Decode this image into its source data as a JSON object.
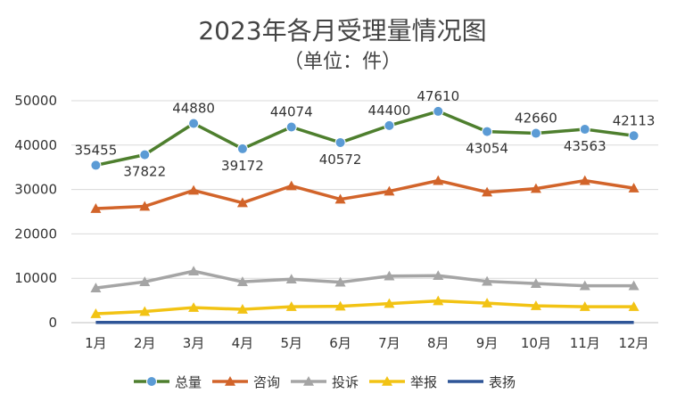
{
  "chart_data": {
    "type": "line",
    "title": "2023年各月受理量情况图",
    "subtitle": "（单位：件）",
    "categories": [
      "1月",
      "2月",
      "3月",
      "4月",
      "5月",
      "6月",
      "7月",
      "8月",
      "9月",
      "10月",
      "11月",
      "12月"
    ],
    "ylim": [
      0,
      50000
    ],
    "yticks": [
      0,
      10000,
      20000,
      30000,
      40000,
      50000
    ],
    "grid": true,
    "legend_position": "bottom",
    "series": [
      {
        "name": "总量",
        "color": "#4e7f2e",
        "marker": "circle",
        "marker_color": "#5b9bd5",
        "show_labels": true,
        "values": [
          35455,
          37822,
          44880,
          39172,
          44074,
          40572,
          44400,
          47610,
          43054,
          42660,
          43563,
          42113
        ]
      },
      {
        "name": "咨询",
        "color": "#d2642a",
        "marker": "triangle",
        "marker_color": "#d2642a",
        "show_labels": false,
        "values": [
          25700,
          26200,
          29800,
          27000,
          30800,
          27800,
          29600,
          32000,
          29400,
          30200,
          32000,
          30300
        ]
      },
      {
        "name": "投诉",
        "color": "#a5a5a5",
        "marker": "triangle",
        "marker_color": "#a5a5a5",
        "show_labels": false,
        "values": [
          7800,
          9200,
          11600,
          9200,
          9800,
          9100,
          10500,
          10600,
          9300,
          8800,
          8300,
          8300
        ]
      },
      {
        "name": "举报",
        "color": "#f2c314",
        "marker": "triangle",
        "marker_color": "#f2c314",
        "show_labels": false,
        "values": [
          2000,
          2500,
          3400,
          3000,
          3600,
          3700,
          4300,
          4900,
          4400,
          3800,
          3600,
          3600
        ]
      },
      {
        "name": "表扬",
        "color": "#2f5597",
        "marker": "none",
        "marker_color": "#2f5597",
        "show_labels": false,
        "values": [
          50,
          50,
          50,
          50,
          50,
          50,
          50,
          50,
          50,
          50,
          50,
          50
        ]
      }
    ]
  }
}
